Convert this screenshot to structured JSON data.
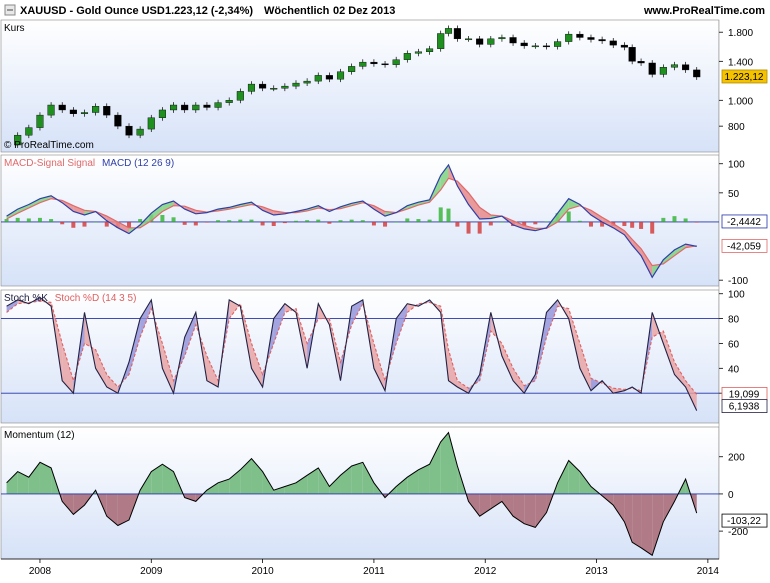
{
  "header": {
    "symbol": "XAUUSD - Gold Ounce USD",
    "price_change": "1.223,12 (-2,34%)",
    "period": "Wöchentlich",
    "date": "02 Dez 2013",
    "website": "www.ProRealTime.com",
    "icon": "toggle-square-icon"
  },
  "colors": {
    "panel_bg_top": "#ffffff",
    "panel_bg_bottom": "#d6e2f8",
    "price_up": "#1f8f1f",
    "price_down": "#000000",
    "macd_line": "#2f3fa8",
    "signal_line": "#e06a6a",
    "hist_up": "#2fb22f",
    "hist_down": "#d23434",
    "stoch_k": "#222244",
    "stoch_d": "#e06060",
    "momentum_pos_fill": "#7fbf8a",
    "momentum_neg_fill": "#b07a86",
    "level_line": "#2233aa",
    "current_price_badge": "#f5c200"
  },
  "chart_data": [
    {
      "type": "line",
      "panel": "Kurs",
      "title": "Kurs",
      "watermark": "© ProRealTime.com",
      "style": "candlestick",
      "y_scale": "log",
      "ylim": [
        640,
        2000
      ],
      "y_ticks": [
        800,
        1000,
        1400,
        1800
      ],
      "y_tick_labels": [
        "800",
        "1.000",
        "1.400",
        "1.800"
      ],
      "last_value_label": "1.223,12",
      "x_ticks": [
        2008,
        2009,
        2010,
        2011,
        2012,
        2013,
        2014
      ],
      "x_tick_labels": [
        "2008",
        "2009",
        "2010",
        "2011",
        "2012",
        "2013",
        "2014"
      ],
      "xlim": [
        2007.65,
        2014.1
      ],
      "x": [
        2007.7,
        2007.8,
        2007.9,
        2008.0,
        2008.1,
        2008.2,
        2008.3,
        2008.4,
        2008.5,
        2008.6,
        2008.7,
        2008.8,
        2008.9,
        2009.0,
        2009.1,
        2009.2,
        2009.3,
        2009.4,
        2009.5,
        2009.6,
        2009.7,
        2009.8,
        2009.9,
        2010.0,
        2010.1,
        2010.2,
        2010.3,
        2010.4,
        2010.5,
        2010.6,
        2010.7,
        2010.8,
        2010.9,
        2011.0,
        2011.1,
        2011.2,
        2011.3,
        2011.4,
        2011.5,
        2011.6,
        2011.67,
        2011.75,
        2011.85,
        2011.95,
        2012.05,
        2012.15,
        2012.25,
        2012.35,
        2012.45,
        2012.55,
        2012.65,
        2012.75,
        2012.85,
        2012.95,
        2013.05,
        2013.15,
        2013.25,
        2013.32,
        2013.4,
        2013.5,
        2013.6,
        2013.7,
        2013.8,
        2013.9
      ],
      "series": [
        {
          "values": [
            680,
            740,
            790,
            880,
            960,
            920,
            890,
            900,
            950,
            880,
            800,
            740,
            780,
            860,
            920,
            960,
            920,
            960,
            940,
            980,
            1000,
            1080,
            1150,
            1110,
            1110,
            1130,
            1160,
            1180,
            1240,
            1200,
            1280,
            1340,
            1390,
            1370,
            1360,
            1420,
            1500,
            1520,
            1560,
            1780,
            1860,
            1700,
            1700,
            1620,
            1700,
            1720,
            1640,
            1600,
            1600,
            1590,
            1660,
            1770,
            1720,
            1690,
            1670,
            1610,
            1580,
            1400,
            1380,
            1250,
            1330,
            1360,
            1300,
            1223
          ]
        }
      ]
    },
    {
      "type": "line",
      "panel": "MACD",
      "title_parts": [
        "MACD-Signal Signal",
        "MACD (12 26 9)"
      ],
      "ylim": [
        -110,
        115
      ],
      "y_ticks": [
        -100,
        50,
        100
      ],
      "y_tick_labels": [
        "-100",
        "50",
        "100"
      ],
      "last_value_labels": [
        "-2,4442",
        "-42,059"
      ],
      "x": [
        2007.7,
        2007.8,
        2007.9,
        2008.0,
        2008.1,
        2008.2,
        2008.3,
        2008.4,
        2008.5,
        2008.6,
        2008.7,
        2008.8,
        2008.9,
        2009.0,
        2009.1,
        2009.2,
        2009.3,
        2009.4,
        2009.5,
        2009.6,
        2009.7,
        2009.8,
        2009.9,
        2010.0,
        2010.1,
        2010.2,
        2010.3,
        2010.4,
        2010.5,
        2010.6,
        2010.7,
        2010.8,
        2010.9,
        2011.0,
        2011.1,
        2011.2,
        2011.3,
        2011.4,
        2011.5,
        2011.6,
        2011.67,
        2011.75,
        2011.85,
        2011.95,
        2012.05,
        2012.15,
        2012.25,
        2012.35,
        2012.45,
        2012.55,
        2012.65,
        2012.75,
        2012.85,
        2012.95,
        2013.05,
        2013.15,
        2013.25,
        2013.32,
        2013.4,
        2013.5,
        2013.6,
        2013.7,
        2013.8,
        2013.9
      ],
      "series": [
        {
          "name": "MACD",
          "values": [
            10,
            22,
            30,
            40,
            45,
            33,
            18,
            12,
            18,
            2,
            -10,
            -20,
            -5,
            15,
            30,
            36,
            22,
            14,
            16,
            22,
            25,
            30,
            34,
            20,
            12,
            14,
            18,
            22,
            28,
            18,
            26,
            32,
            36,
            22,
            10,
            16,
            28,
            34,
            38,
            80,
            98,
            62,
            30,
            5,
            6,
            10,
            -5,
            -12,
            -15,
            -10,
            15,
            40,
            30,
            12,
            0,
            -10,
            -22,
            -40,
            -58,
            -95,
            -65,
            -48,
            -38,
            -42
          ]
        },
        {
          "name": "MACD-Signal Signal",
          "values": [
            5,
            15,
            24,
            33,
            40,
            37,
            28,
            20,
            18,
            10,
            0,
            -10,
            -10,
            2,
            18,
            28,
            27,
            20,
            17,
            19,
            22,
            26,
            30,
            26,
            19,
            16,
            16,
            19,
            24,
            21,
            23,
            28,
            33,
            28,
            18,
            16,
            22,
            29,
            34,
            55,
            75,
            70,
            50,
            25,
            12,
            10,
            2,
            -6,
            -11,
            -11,
            0,
            22,
            28,
            20,
            8,
            -3,
            -15,
            -30,
            -46,
            -75,
            -72,
            -58,
            -44,
            -41
          ]
        }
      ],
      "histogram": [
        5,
        7,
        6,
        7,
        5,
        -4,
        -10,
        -8,
        0,
        -8,
        -10,
        -10,
        5,
        13,
        12,
        8,
        -5,
        -6,
        -1,
        3,
        3,
        4,
        4,
        -6,
        -7,
        -2,
        2,
        3,
        4,
        -3,
        3,
        4,
        3,
        -6,
        -8,
        0,
        6,
        5,
        4,
        25,
        23,
        -8,
        -20,
        -20,
        -6,
        0,
        -7,
        -6,
        -4,
        1,
        15,
        18,
        2,
        -8,
        -8,
        -7,
        -7,
        -10,
        -12,
        -20,
        7,
        10,
        6,
        -1
      ]
    },
    {
      "type": "line",
      "panel": "Stochastik",
      "title_parts": [
        "Stoch %K",
        "Stoch %D (14 3 5)"
      ],
      "ylim": [
        0,
        100
      ],
      "y_ticks": [
        20,
        40,
        60,
        80,
        100
      ],
      "y_tick_labels": [
        "20",
        "40",
        "60",
        "80",
        "100"
      ],
      "levels": [
        80,
        20
      ],
      "last_value_labels": [
        "19,099",
        "6,1938"
      ],
      "x": [
        2007.7,
        2007.8,
        2007.9,
        2008.0,
        2008.1,
        2008.2,
        2008.3,
        2008.4,
        2008.5,
        2008.6,
        2008.7,
        2008.8,
        2008.9,
        2009.0,
        2009.1,
        2009.2,
        2009.3,
        2009.4,
        2009.5,
        2009.6,
        2009.7,
        2009.8,
        2009.9,
        2010.0,
        2010.1,
        2010.2,
        2010.3,
        2010.4,
        2010.5,
        2010.6,
        2010.7,
        2010.8,
        2010.9,
        2011.0,
        2011.1,
        2011.2,
        2011.3,
        2011.4,
        2011.5,
        2011.6,
        2011.67,
        2011.75,
        2011.85,
        2011.95,
        2012.05,
        2012.15,
        2012.25,
        2012.35,
        2012.45,
        2012.55,
        2012.65,
        2012.75,
        2012.85,
        2012.95,
        2013.05,
        2013.15,
        2013.25,
        2013.32,
        2013.4,
        2013.5,
        2013.6,
        2013.7,
        2013.8,
        2013.9
      ],
      "series": [
        {
          "name": "Stoch %K",
          "values": [
            90,
            95,
            92,
            97,
            90,
            30,
            20,
            85,
            40,
            25,
            20,
            45,
            80,
            95,
            40,
            20,
            65,
            85,
            30,
            25,
            95,
            90,
            40,
            25,
            80,
            92,
            85,
            40,
            92,
            75,
            30,
            90,
            95,
            40,
            22,
            80,
            92,
            90,
            95,
            85,
            30,
            25,
            20,
            35,
            85,
            50,
            30,
            20,
            35,
            85,
            95,
            80,
            40,
            22,
            30,
            20,
            22,
            25,
            20,
            85,
            60,
            35,
            25,
            6
          ]
        },
        {
          "name": "Stoch %D",
          "values": [
            85,
            92,
            93,
            94,
            93,
            60,
            30,
            60,
            55,
            35,
            25,
            35,
            65,
            88,
            60,
            30,
            50,
            75,
            50,
            30,
            80,
            92,
            60,
            35,
            60,
            85,
            88,
            60,
            80,
            80,
            45,
            75,
            92,
            60,
            30,
            60,
            85,
            92,
            93,
            90,
            55,
            30,
            24,
            30,
            70,
            60,
            40,
            26,
            30,
            65,
            90,
            88,
            60,
            32,
            28,
            24,
            23,
            24,
            22,
            65,
            70,
            45,
            30,
            19
          ]
        }
      ]
    },
    {
      "type": "area",
      "panel": "Momentum",
      "title": "Momentum (12)",
      "ylim": [
        -350,
        360
      ],
      "y_ticks": [
        -200,
        0,
        200
      ],
      "y_tick_labels": [
        "-200",
        "0",
        "200"
      ],
      "last_value_label": "-103,22",
      "x": [
        2007.7,
        2007.8,
        2007.9,
        2008.0,
        2008.1,
        2008.2,
        2008.3,
        2008.4,
        2008.5,
        2008.6,
        2008.7,
        2008.8,
        2008.9,
        2009.0,
        2009.1,
        2009.2,
        2009.3,
        2009.4,
        2009.5,
        2009.6,
        2009.7,
        2009.8,
        2009.9,
        2010.0,
        2010.1,
        2010.2,
        2010.3,
        2010.4,
        2010.5,
        2010.6,
        2010.7,
        2010.8,
        2010.9,
        2011.0,
        2011.1,
        2011.2,
        2011.3,
        2011.4,
        2011.5,
        2011.6,
        2011.67,
        2011.75,
        2011.85,
        2011.95,
        2012.05,
        2012.15,
        2012.25,
        2012.35,
        2012.45,
        2012.55,
        2012.65,
        2012.75,
        2012.85,
        2012.95,
        2013.05,
        2013.15,
        2013.25,
        2013.32,
        2013.4,
        2013.5,
        2013.6,
        2013.7,
        2013.8,
        2013.9
      ],
      "series": [
        {
          "name": "Momentum (12)",
          "values": [
            60,
            120,
            90,
            170,
            140,
            -40,
            -110,
            -60,
            20,
            -120,
            -170,
            -140,
            20,
            120,
            160,
            120,
            -20,
            -40,
            20,
            60,
            80,
            130,
            190,
            120,
            20,
            40,
            60,
            100,
            140,
            40,
            100,
            150,
            170,
            60,
            -20,
            40,
            90,
            130,
            160,
            280,
            330,
            150,
            -40,
            -120,
            -80,
            -40,
            -120,
            -160,
            -180,
            -100,
            60,
            180,
            120,
            40,
            -10,
            -60,
            -150,
            -260,
            -290,
            -330,
            -150,
            -40,
            80,
            -103
          ]
        }
      ]
    }
  ]
}
